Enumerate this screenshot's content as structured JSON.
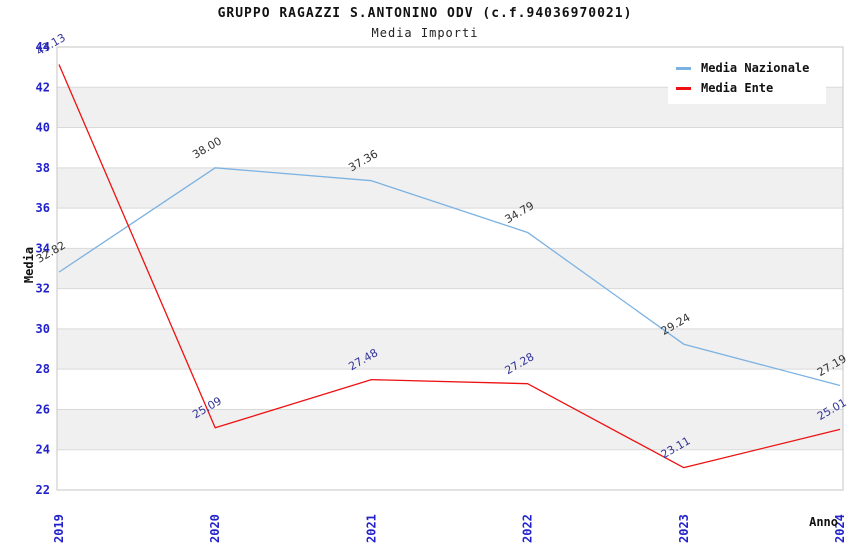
{
  "header": {
    "title": "GRUPPO RAGAZZI S.ANTONINO ODV (c.f.94036970021)",
    "subtitle": "Media Importi"
  },
  "chart_data": {
    "type": "line",
    "title": "GRUPPO RAGAZZI S.ANTONINO ODV (c.f.94036970021)",
    "subtitle": "Media Importi",
    "x": [
      "2019",
      "2020",
      "2021",
      "2022",
      "2023",
      "2024"
    ],
    "series": [
      {
        "name": "Media Nazionale",
        "color": "#7cb2e2",
        "label_color": "#333333",
        "values": [
          32.82,
          38.0,
          37.36,
          34.79,
          29.24,
          27.19
        ]
      },
      {
        "name": "Media Ente",
        "color": "#ee1111",
        "label_color": "#333399",
        "values": [
          43.13,
          25.09,
          27.48,
          27.28,
          23.11,
          25.01
        ]
      }
    ],
    "xlabel": "Anno",
    "ylabel": "Media",
    "ylim": [
      22,
      44
    ],
    "ytick_step": 2,
    "yticks": [
      22,
      24,
      26,
      28,
      30,
      32,
      34,
      36,
      38,
      40,
      42,
      44
    ],
    "grid": true,
    "legend_position": "top-right",
    "data_labels": true,
    "colors": {
      "tick_label": "#2222cc",
      "grid_line": "#d9d9d9",
      "plot_border": "#c6c6c6",
      "band_fill": "#f0f0f0",
      "band_alt_fill": "#ffffff"
    }
  },
  "legend": {
    "items": [
      {
        "label": "Media Nazionale"
      },
      {
        "label": "Media Ente"
      }
    ]
  }
}
